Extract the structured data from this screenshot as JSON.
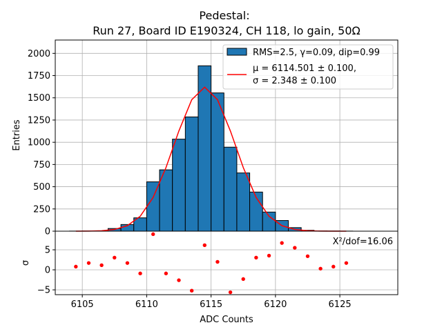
{
  "chart_data": [
    {
      "type": "bar",
      "title": [
        "Pedestal:",
        "Run 27, Board ID E190324, CH 118, lo gain, 50Ω"
      ],
      "xlabel": "",
      "ylabel": "Entries",
      "xlim": [
        6102.9,
        6129.5
      ],
      "ylim": [
        0,
        2150
      ],
      "yticks": [
        0,
        250,
        500,
        750,
        1000,
        1250,
        1500,
        1750,
        2000
      ],
      "grid": true,
      "bar_color": "#1f77b4",
      "fit_color": "#ff0000",
      "bin_edges": [
        6104,
        6105,
        6106,
        6107,
        6108,
        6109,
        6110,
        6111,
        6112,
        6113,
        6114,
        6115,
        6116,
        6117,
        6118,
        6119,
        6120,
        6121,
        6122,
        6123,
        6124,
        6125,
        6126
      ],
      "values": [
        1,
        2,
        2,
        30,
        75,
        150,
        555,
        690,
        1035,
        1285,
        1860,
        1555,
        945,
        655,
        440,
        215,
        120,
        40,
        10,
        3,
        2,
        1
      ],
      "fit": {
        "x": [
          6104.5,
          6105.5,
          6106.5,
          6107.5,
          6108.5,
          6109.5,
          6110.5,
          6111.5,
          6112.5,
          6113.5,
          6114.5,
          6115.5,
          6116.5,
          6117.5,
          6118.5,
          6119.5,
          6120.5,
          6121.5,
          6122.5,
          6123.5,
          6124.5,
          6125.5
        ],
        "y": [
          0,
          1,
          5,
          19,
          62,
          168,
          379,
          716,
          1127,
          1479,
          1620,
          1479,
          1127,
          716,
          379,
          168,
          62,
          19,
          5,
          1,
          0,
          0
        ]
      },
      "legend": {
        "placement": "upper right",
        "entries": [
          "RMS=2.5, γ=0.09, dip=0.99",
          "μ = 6114.501 ± 0.100,",
          "σ = 2.348 ± 0.100"
        ]
      }
    },
    {
      "type": "scatter",
      "xlabel": "ADC Counts",
      "ylabel": "σ",
      "xlim": [
        6102.9,
        6129.5
      ],
      "ylim": [
        -6.2,
        9.65
      ],
      "xticks": [
        6105,
        6110,
        6115,
        6120,
        6125
      ],
      "yticks": [
        -5,
        0,
        5
      ],
      "grid": true,
      "point_color": "#ff0000",
      "annotation": "X²/dof=16.06",
      "x": [
        6104.5,
        6105.5,
        6106.5,
        6107.5,
        6108.5,
        6109.5,
        6110.5,
        6111.5,
        6112.5,
        6113.5,
        6114.5,
        6115.5,
        6116.5,
        6117.5,
        6118.5,
        6119.5,
        6120.5,
        6121.5,
        6122.5,
        6123.5,
        6124.5,
        6125.5
      ],
      "y": [
        0.8,
        1.7,
        1.15,
        3.05,
        1.7,
        -0.9,
        8.9,
        -0.9,
        -2.6,
        -5.2,
        6.15,
        2.0,
        -5.6,
        -2.3,
        3.05,
        3.55,
        6.7,
        5.5,
        3.4,
        0.3,
        0.8,
        1.7
      ]
    }
  ]
}
